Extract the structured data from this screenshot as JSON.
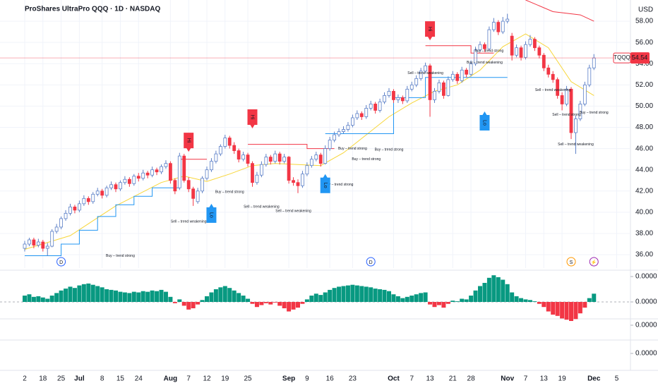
{
  "chart_data": [
    {
      "type": "candlestick",
      "title": "ProShares UltraPro QQQ · 1D · NASDAQ",
      "currency": "USD",
      "symbol": "TQQQ",
      "categories": [
        "2",
        null,
        null,
        null,
        "18",
        null,
        null,
        null,
        "25",
        null,
        null,
        null,
        "Jul",
        null,
        null,
        null,
        null,
        "8",
        null,
        null,
        null,
        "15",
        null,
        null,
        null,
        "24",
        null,
        null,
        null,
        null,
        null,
        null,
        "Aug",
        null,
        null,
        null,
        "7",
        null,
        null,
        null,
        "12",
        null,
        null,
        null,
        "19",
        null,
        null,
        null,
        null,
        "25",
        null,
        null,
        null,
        null,
        null,
        null,
        null,
        null,
        "Sep",
        null,
        null,
        null,
        "9",
        null,
        null,
        null,
        null,
        "16",
        null,
        null,
        null,
        null,
        "23",
        null,
        null,
        null,
        null,
        null,
        null,
        null,
        null,
        "Oct",
        null,
        null,
        null,
        "7",
        null,
        null,
        null,
        "13",
        null,
        null,
        null,
        null,
        "21",
        null,
        null,
        null,
        "28",
        null,
        null,
        null,
        null,
        null,
        null,
        null,
        "Nov",
        null,
        null,
        null,
        "7",
        null,
        null,
        null,
        "13",
        null,
        null,
        null,
        "19",
        null,
        null,
        null,
        null,
        null,
        null,
        "Dec",
        null,
        null,
        null,
        null,
        "5"
      ],
      "open": [
        36.6,
        37.0,
        37.4,
        36.9,
        37.2,
        36.6,
        36.8,
        38.2,
        38.6,
        39.4,
        39.9,
        40.5,
        40.2,
        40.8,
        41.3,
        41.0,
        41.7,
        42.0,
        41.6,
        42.3,
        42.6,
        42.2,
        42.8,
        43.1,
        42.7,
        43.4,
        43.2,
        43.7,
        43.5,
        44.0,
        43.8,
        44.3,
        44.6,
        43.0,
        42.3,
        45.3,
        43.0,
        42.2,
        41.0,
        42.0,
        43.2,
        44.0,
        44.8,
        45.5,
        46.2,
        47.0,
        46.3,
        45.8,
        45.0,
        45.4,
        44.6,
        42.8,
        43.5,
        44.5,
        45.2,
        44.8,
        45.5,
        44.8,
        45.2,
        43.0,
        42.8,
        42.5,
        43.6,
        44.4,
        45.0,
        45.4,
        44.6,
        46.0,
        46.8,
        47.3,
        47.6,
        47.8,
        48.2,
        48.9,
        49.3,
        49.0,
        49.8,
        50.2,
        49.6,
        50.4,
        51.0,
        51.4,
        50.6,
        50.8,
        50.5,
        51.6,
        52.0,
        52.6,
        53.3,
        53.8,
        50.6,
        51.4,
        52.2,
        51.0,
        52.5,
        53.0,
        52.4,
        53.4,
        53.0,
        54.0,
        55.3,
        55.8,
        55.4,
        57.2,
        57.9,
        57.0,
        58.0,
        56.6,
        54.8,
        55.5,
        54.6,
        55.8,
        56.3,
        55.5,
        54.8,
        53.6,
        53.0,
        52.5,
        51.0,
        50.2,
        51.6,
        47.5,
        48.8,
        50.2,
        52.0,
        53.6,
        null,
        null,
        null,
        null,
        null
      ],
      "high": [
        37.3,
        37.6,
        37.6,
        37.5,
        37.4,
        37.1,
        38.4,
        38.9,
        39.6,
        40.2,
        40.8,
        40.7,
        41.1,
        41.6,
        41.5,
        41.9,
        42.3,
        42.2,
        42.5,
        42.9,
        42.8,
        43.0,
        43.4,
        43.3,
        43.6,
        43.7,
        44.0,
        43.9,
        44.3,
        44.2,
        44.5,
        44.9,
        44.8,
        43.2,
        45.6,
        45.5,
        43.3,
        42.4,
        42.3,
        43.4,
        44.3,
        45.1,
        45.8,
        46.4,
        47.3,
        47.2,
        46.6,
        46.0,
        45.7,
        45.6,
        44.8,
        43.8,
        44.8,
        45.5,
        45.4,
        45.8,
        45.7,
        45.5,
        45.3,
        43.3,
        43.1,
        43.9,
        44.7,
        45.3,
        45.7,
        45.6,
        46.3,
        47.1,
        47.6,
        47.9,
        48.1,
        48.5,
        49.2,
        49.6,
        49.5,
        50.1,
        50.5,
        50.4,
        50.7,
        51.3,
        51.7,
        51.6,
        51.1,
        51.0,
        51.9,
        52.3,
        52.9,
        53.6,
        54.1,
        54.0,
        51.7,
        52.5,
        52.4,
        52.8,
        53.3,
        53.2,
        53.7,
        53.6,
        54.3,
        55.6,
        56.1,
        56.0,
        57.5,
        58.3,
        58.1,
        58.4,
        58.7,
        56.9,
        55.8,
        55.7,
        56.1,
        56.7,
        56.5,
        55.7,
        55.0,
        53.9,
        53.3,
        52.7,
        51.3,
        51.9,
        51.8,
        49.1,
        50.5,
        52.3,
        53.9,
        54.9,
        null,
        null,
        null,
        null,
        null
      ],
      "low": [
        36.3,
        36.8,
        36.6,
        36.7,
        36.3,
        35.9,
        36.7,
        38.0,
        38.4,
        39.2,
        39.7,
        39.9,
        40.0,
        40.6,
        40.7,
        40.8,
        41.5,
        41.3,
        41.4,
        42.1,
        41.9,
        42.0,
        42.6,
        42.4,
        42.5,
        42.9,
        43.0,
        43.2,
        43.3,
        43.5,
        43.6,
        44.1,
        42.7,
        41.7,
        42.1,
        42.8,
        41.9,
        40.6,
        40.8,
        41.8,
        43.0,
        43.8,
        44.6,
        45.3,
        46.0,
        46.0,
        45.5,
        44.7,
        44.8,
        44.3,
        42.4,
        42.6,
        43.3,
        44.3,
        44.5,
        44.6,
        44.5,
        44.6,
        42.7,
        42.5,
        41.8,
        42.3,
        43.4,
        44.2,
        44.8,
        44.3,
        44.5,
        45.8,
        46.6,
        47.1,
        47.4,
        47.6,
        48.0,
        48.7,
        48.7,
        48.8,
        49.6,
        49.3,
        49.4,
        50.2,
        50.8,
        50.3,
        50.3,
        50.2,
        50.3,
        51.4,
        51.8,
        52.4,
        53.1,
        49.0,
        50.3,
        51.2,
        50.7,
        50.9,
        52.3,
        52.1,
        52.2,
        52.7,
        52.8,
        53.8,
        55.1,
        55.1,
        55.2,
        57.0,
        56.7,
        56.8,
        57.8,
        54.3,
        54.6,
        54.3,
        54.4,
        55.6,
        55.2,
        54.5,
        53.3,
        52.7,
        52.2,
        50.7,
        49.6,
        50.0,
        46.9,
        45.5,
        48.6,
        50.0,
        51.8,
        53.4,
        null,
        null,
        null,
        null,
        null
      ],
      "close": [
        37.0,
        37.4,
        36.9,
        37.2,
        36.6,
        36.8,
        38.2,
        38.6,
        39.4,
        39.9,
        40.5,
        40.2,
        40.8,
        41.3,
        41.0,
        41.7,
        42.0,
        41.6,
        42.3,
        42.6,
        42.2,
        42.8,
        43.1,
        42.7,
        43.4,
        43.2,
        43.7,
        43.5,
        44.0,
        43.8,
        44.3,
        44.6,
        43.0,
        42.0,
        45.3,
        43.0,
        42.2,
        41.3,
        42.0,
        43.2,
        44.0,
        44.8,
        45.5,
        46.2,
        47.0,
        46.3,
        45.8,
        45.0,
        45.4,
        44.6,
        42.8,
        43.5,
        44.5,
        45.2,
        44.8,
        45.5,
        44.8,
        45.2,
        43.0,
        42.8,
        42.5,
        43.6,
        44.4,
        45.0,
        45.4,
        44.6,
        46.0,
        46.8,
        47.3,
        47.6,
        47.8,
        48.2,
        48.9,
        49.3,
        49.0,
        49.8,
        50.2,
        49.6,
        50.4,
        51.0,
        51.4,
        50.6,
        50.8,
        50.5,
        51.6,
        52.0,
        52.6,
        53.3,
        53.8,
        50.6,
        51.4,
        52.2,
        51.0,
        52.5,
        53.0,
        52.4,
        53.4,
        53.0,
        54.0,
        55.3,
        55.8,
        55.4,
        57.2,
        57.9,
        57.0,
        58.0,
        58.2,
        54.8,
        55.5,
        54.6,
        55.8,
        56.3,
        55.5,
        54.8,
        53.6,
        53.0,
        52.5,
        51.0,
        50.2,
        51.6,
        47.5,
        48.8,
        50.2,
        52.0,
        53.6,
        54.54,
        null,
        null,
        null,
        null,
        null
      ],
      "colors": {
        "up": "#ffffff",
        "up_border": "#5b7fc7",
        "down": "#f23645"
      },
      "ylim": [
        34.74,
        60.0
      ],
      "yticks": [
        {
          "value": 36,
          "label": "36.00"
        },
        {
          "value": 38,
          "label": "38.00"
        },
        {
          "value": 40,
          "label": "40.00"
        },
        {
          "value": 42,
          "label": "42.00"
        },
        {
          "value": 44,
          "label": "44.00"
        },
        {
          "value": 46,
          "label": "46.00"
        },
        {
          "value": 48,
          "label": "48.00"
        },
        {
          "value": 50,
          "label": "50.00"
        },
        {
          "value": 52,
          "label": "52.00"
        },
        {
          "value": 54,
          "label": "54.00"
        },
        {
          "value": 56,
          "label": "56.00"
        },
        {
          "value": 58,
          "label": "58.00"
        }
      ],
      "grid": true,
      "lines": [
        {
          "color": "#f7d63a",
          "x": [
            0,
            10,
            20,
            30,
            35,
            40,
            45,
            50,
            55,
            60,
            65,
            70,
            75,
            80,
            85,
            90,
            95,
            100,
            105,
            110,
            115,
            120,
            125
          ],
          "values": [
            36.5,
            37.8,
            40.6,
            42.8,
            43.4,
            42.9,
            43.6,
            44.4,
            44.6,
            44.5,
            44.4,
            45.6,
            47.3,
            49.0,
            50.3,
            51.4,
            52.0,
            53.4,
            55.6,
            56.8,
            55.5,
            52.3,
            51.0
          ]
        },
        {
          "color": "#2196f3",
          "x": [
            0,
            8,
            8,
            12,
            12,
            16,
            16,
            20,
            20,
            24,
            24,
            28,
            28,
            34,
            null,
            66,
            81,
            81,
            88,
            88,
            106
          ],
          "values": [
            35.9,
            35.9,
            37.0,
            37.0,
            38.3,
            38.3,
            39.6,
            39.6,
            40.7,
            40.7,
            41.5,
            41.5,
            42.3,
            42.3,
            null,
            47.4,
            47.4,
            50.8,
            50.8,
            52.7,
            52.7
          ]
        },
        {
          "color": "#f23645",
          "x": [
            34,
            40,
            null,
            49,
            62,
            62,
            68,
            null,
            88,
            98,
            98,
            103,
            null,
            110,
            116,
            116,
            122,
            125
          ],
          "values": [
            45.0,
            45.0,
            null,
            46.4,
            46.4,
            46.0,
            46.0,
            null,
            55.7,
            55.7,
            55.0,
            55.0,
            null,
            60.0,
            58.9,
            58.9,
            58.6,
            58.0
          ]
        }
      ],
      "annotations": [
        {
          "text": "Buy – trend strong",
          "x": 21,
          "y": 35.9,
          "color": "#4caf50"
        },
        {
          "text": "Sell – trend weakening",
          "x": 36,
          "y": 39.1,
          "color": "#f23645"
        },
        {
          "text": "Buy – trend strong",
          "x": 45,
          "y": 41.9,
          "color": "#4caf50"
        },
        {
          "text": "Sell – trend weakening",
          "x": 52,
          "y": 40.5,
          "color": "#f23645"
        },
        {
          "text": "Sell – trend weakening",
          "x": 59,
          "y": 40.1,
          "color": "#f23645"
        },
        {
          "text": "Buy – trend strong",
          "x": 69,
          "y": 42.6,
          "color": "#4caf50"
        },
        {
          "text": "Buy – trend strong",
          "x": 72,
          "y": 46.0,
          "color": "#4caf50"
        },
        {
          "text": "Buy – trend strong",
          "x": 75,
          "y": 45.0,
          "color": "#4caf50"
        },
        {
          "text": "Buy – trend strong",
          "x": 80,
          "y": 45.9,
          "color": "#4caf50"
        },
        {
          "text": "Sell – trend weakening",
          "x": 88,
          "y": 53.1,
          "color": "#f23645"
        },
        {
          "text": "Buy – trend strong",
          "x": 102,
          "y": 55.2,
          "color": "#4caf50"
        },
        {
          "text": "Buy – trend weakening",
          "x": 101,
          "y": 54.1,
          "color": "#4caf50"
        },
        {
          "text": "Sell – trend weakening",
          "x": 116,
          "y": 51.5,
          "color": "#f23645"
        },
        {
          "text": "Sell – trend strong",
          "x": 119,
          "y": 49.2,
          "color": "#f23645"
        },
        {
          "text": "Sell – trend weakening",
          "x": 121,
          "y": 46.4,
          "color": "#f23645"
        },
        {
          "text": "Buy – trend strong",
          "x": 125,
          "y": 49.4,
          "color": "#4caf50"
        }
      ],
      "markers": [
        {
          "text": "Hi",
          "x": 36,
          "y": 45.5,
          "kind": "high"
        },
        {
          "text": "Hi",
          "x": 50,
          "y": 47.7,
          "kind": "high"
        },
        {
          "text": "Hi",
          "x": 89,
          "y": 56.0,
          "kind": "high"
        },
        {
          "text": "Lo",
          "x": 41,
          "y": 41.0,
          "kind": "low"
        },
        {
          "text": "Lo",
          "x": 66,
          "y": 43.8,
          "kind": "low"
        },
        {
          "text": "Lo",
          "x": 101,
          "y": 49.7,
          "kind": "low"
        }
      ],
      "events": [
        {
          "text": "D",
          "x": 8,
          "color": "#2962ff"
        },
        {
          "text": "D",
          "x": 76,
          "color": "#2962ff"
        },
        {
          "text": "S",
          "x": 120,
          "color": "#ff9800"
        },
        {
          "text": "⚡",
          "x": 125,
          "color": "#9c27b0"
        }
      ]
    },
    {
      "type": "bar",
      "values": [
        1e-05,
        1.2e-05,
        8e-06,
        9e-06,
        7e-06,
        5e-06,
        1e-05,
        1.4e-05,
        1.8e-05,
        2.1e-05,
        2.4e-05,
        2.2e-05,
        2.6e-05,
        2.8e-05,
        2.9e-05,
        2.7e-05,
        2.5e-05,
        2.3e-05,
        2e-05,
        1.9e-05,
        1.8e-05,
        1.6e-05,
        1.5e-05,
        1.4e-05,
        1.6e-05,
        1.5e-05,
        1.7e-05,
        1.6e-05,
        1.8e-05,
        1.7e-05,
        1.9e-05,
        1.6e-05,
        8e-06,
        -2e-06,
        4e-06,
        -6e-06,
        -1.2e-05,
        -1e-05,
        -4e-06,
        3e-06,
        9e-06,
        1.5e-05,
        2e-05,
        2.3e-05,
        2.5e-05,
        2.2e-05,
        1.8e-05,
        1.4e-05,
        1e-05,
        5e-06,
        -3e-06,
        -8e-06,
        -5e-06,
        -2e-06,
        -4e-06,
        -1e-06,
        -6e-06,
        -1e-05,
        -1.5e-05,
        -1.2e-05,
        -9e-06,
        -3e-06,
        4e-06,
        1e-05,
        1.3e-05,
        1.1e-05,
        1.5e-05,
        1.9e-05,
        2.2e-05,
        2.4e-05,
        2.5e-05,
        2.6e-05,
        2.7e-05,
        2.6e-05,
        2.5e-05,
        2.4e-05,
        2.3e-05,
        2.1e-05,
        2e-05,
        1.9e-05,
        1.7e-05,
        1.2e-05,
        9e-06,
        6e-06,
        8e-06,
        1e-05,
        1.2e-05,
        1.4e-05,
        1.5e-05,
        -4e-06,
        -8e-06,
        -5e-06,
        -9e-06,
        -3e-06,
        2e-06,
        1e-06,
        5e-06,
        4e-06,
        1e-05,
        1.8e-05,
        2.5e-05,
        3e-05,
        3.8e-05,
        4.2e-05,
        3.9e-05,
        3.5e-05,
        2.8e-05,
        1.5e-05,
        9e-06,
        6e-06,
        4e-06,
        3e-06,
        1e-06,
        -3e-06,
        -8e-06,
        -1.5e-05,
        -2e-05,
        -2.2e-05,
        -2.6e-05,
        -2.8e-05,
        -3e-05,
        -2.7e-05,
        -1.8e-05,
        -9e-06,
        6e-06,
        1.3e-05,
        null,
        null,
        null,
        null,
        null
      ],
      "colors": {
        "up": "#089981",
        "down": "#f23645"
      },
      "ylim": [
        -6e-05,
        6e-05
      ],
      "yticks": [
        {
          "value": 4e-05,
          "label": "0.0000"
        },
        {
          "value": 0,
          "label": "0.0000"
        }
      ]
    },
    {
      "type": "dots",
      "ylim": [
        -2e-05,
        6e-05
      ],
      "yticks": [
        {
          "value": 4e-05,
          "label": "0.0000"
        },
        {
          "value": 0,
          "label": "0.0000"
        }
      ]
    }
  ]
}
